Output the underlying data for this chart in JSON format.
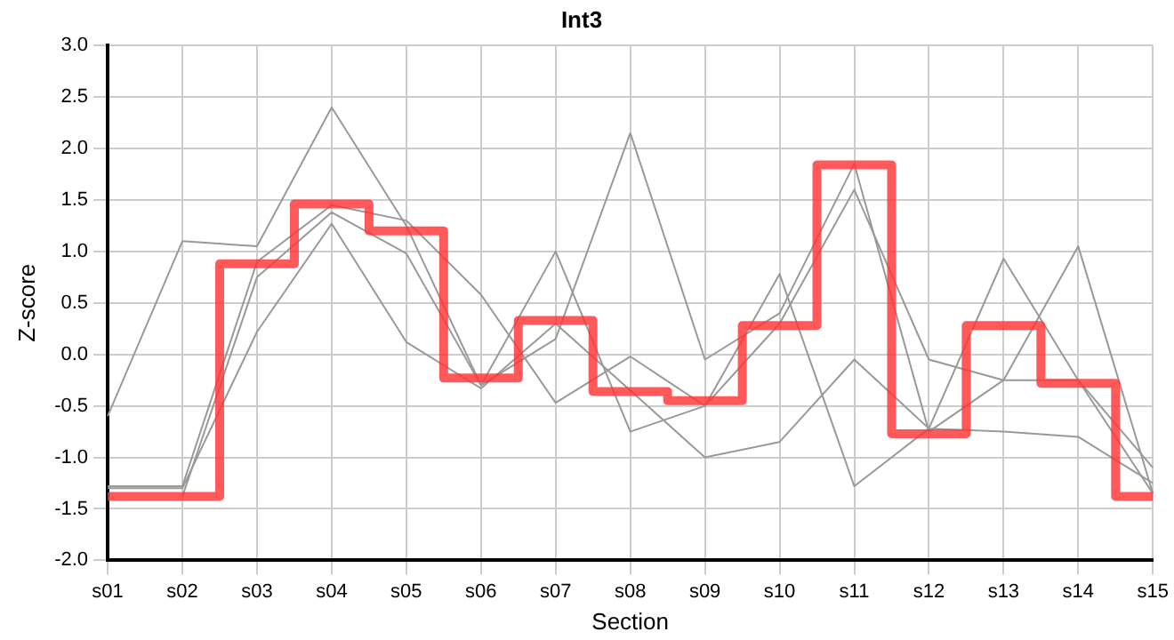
{
  "chart_data": {
    "type": "line",
    "title": "Int3",
    "xlabel": "Section",
    "ylabel": "Z-score",
    "categories": [
      "s01",
      "s02",
      "s03",
      "s04",
      "s05",
      "s06",
      "s07",
      "s08",
      "s09",
      "s10",
      "s11",
      "s12",
      "s13",
      "s14",
      "s15"
    ],
    "series": [
      {
        "color": "#999999",
        "values": [
          -0.6,
          1.1,
          1.05,
          2.4,
          1.25,
          -0.3,
          0.15,
          2.15,
          -0.05,
          0.4,
          1.85,
          -0.75,
          -0.25,
          1.05,
          -1.35
        ]
      },
      {
        "color": "#999999",
        "values": [
          -1.28,
          -1.28,
          0.9,
          1.45,
          1.3,
          0.58,
          -0.47,
          -0.02,
          -0.5,
          0.3,
          1.6,
          -0.05,
          -0.25,
          -0.25,
          -1.1
        ]
      },
      {
        "color": "#999999",
        "values": [
          null,
          -1.38,
          0.75,
          1.38,
          0.98,
          -0.3,
          1.0,
          -0.75,
          -0.5,
          0.78,
          -1.28,
          -0.72,
          0.93,
          -0.25,
          -1.35
        ]
      },
      {
        "color": "#999999",
        "values": [
          -1.3,
          -1.3,
          0.22,
          1.27,
          0.12,
          -0.33,
          0.3,
          -0.35,
          -1.0,
          -0.85,
          -0.05,
          -0.72,
          -0.75,
          -0.8,
          -1.25
        ]
      },
      {
        "type": "step",
        "color": "#ff3333",
        "values": [
          -1.38,
          -1.38,
          0.88,
          1.46,
          1.2,
          -0.23,
          0.33,
          -0.36,
          -0.45,
          0.28,
          1.84,
          -0.77,
          0.28,
          -0.28,
          -1.38
        ]
      }
    ],
    "ylim": [
      -2,
      3
    ],
    "yticks": [
      {
        "value": -2,
        "label": "-2.0"
      },
      {
        "value": -1.5,
        "label": "-1.5"
      },
      {
        "value": -1,
        "label": "-1.0"
      },
      {
        "value": -0.5,
        "label": "-0.5"
      },
      {
        "value": 0,
        "label": "0.0"
      },
      {
        "value": 0.5,
        "label": "0.5"
      },
      {
        "value": 1,
        "label": "1.0"
      },
      {
        "value": 1.5,
        "label": "1.5"
      },
      {
        "value": 2,
        "label": "2.0"
      },
      {
        "value": 2.5,
        "label": "2.5"
      },
      {
        "value": 3,
        "label": "3.0"
      }
    ],
    "grid": true,
    "legend": false,
    "marker": "none"
  }
}
